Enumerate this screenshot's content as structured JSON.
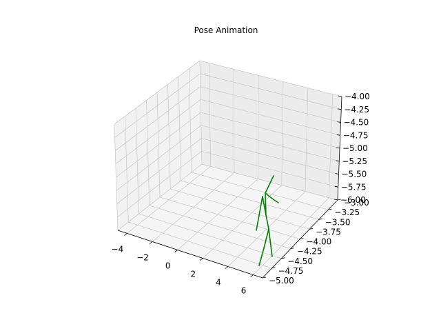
{
  "chart_data": {
    "type": "line",
    "projection": "3d",
    "title": "Pose Animation",
    "xlabel": "",
    "ylabel": "",
    "zlabel": "",
    "xlim": [
      -5,
      7.5
    ],
    "ylim": [
      -5.0,
      -3.0
    ],
    "zlim": [
      -6.0,
      -4.0
    ],
    "x_ticks": [
      "−4",
      "−2",
      "0",
      "2",
      "4",
      "6"
    ],
    "y_ticks": [
      "−5.00",
      "−4.75",
      "−4.50",
      "−4.25",
      "−4.00",
      "−3.75",
      "−3.50",
      "−3.25",
      "−3.00"
    ],
    "z_ticks": [
      "−6.00",
      "−5.75",
      "−5.50",
      "−5.25",
      "−5.00",
      "−4.75",
      "−4.50",
      "−4.25",
      "−4.00"
    ],
    "grid": true,
    "series_color": "#008000",
    "skeleton_segments": [
      [
        [
          385,
          280
        ],
        [
          397,
          255
        ]
      ],
      [
        [
          385,
          280
        ],
        [
          395,
          288
        ]
      ],
      [
        [
          395,
          288
        ],
        [
          404,
          294
        ]
      ],
      [
        [
          385,
          280
        ],
        [
          386,
          312
        ]
      ],
      [
        [
          386,
          312
        ],
        [
          381,
          285
        ]
      ],
      [
        [
          381,
          285
        ],
        [
          372,
          334
        ]
      ],
      [
        [
          386,
          312
        ],
        [
          390,
          332
        ]
      ],
      [
        [
          390,
          332
        ],
        [
          383,
          360
        ]
      ],
      [
        [
          383,
          360
        ],
        [
          376,
          385
        ]
      ],
      [
        [
          390,
          332
        ],
        [
          395,
          372
        ]
      ]
    ]
  }
}
